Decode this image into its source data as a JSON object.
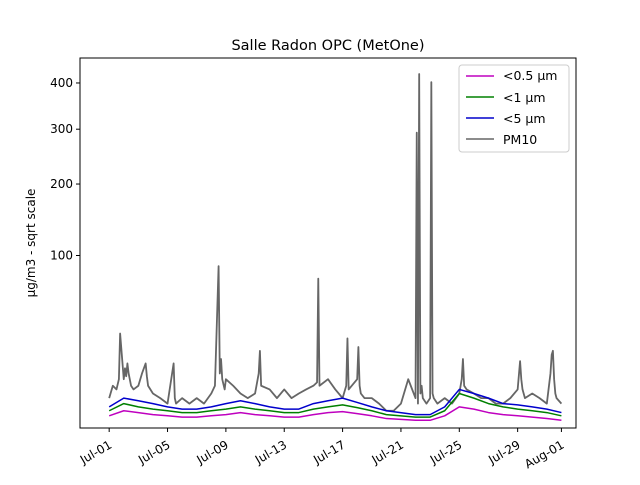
{
  "chart_data": {
    "type": "line",
    "title": "Salle Radon OPC (MetOne)",
    "xlabel": "",
    "ylabel": "µg/m3 - sqrt scale",
    "y_scale": "sqrt",
    "ylim": [
      0,
      460
    ],
    "xlim": [
      "2023-06-29",
      "2023-08-02"
    ],
    "y_ticks": [
      100,
      200,
      300,
      400
    ],
    "x_ticks": [
      "Jul-01",
      "Jul-05",
      "Jul-09",
      "Jul-13",
      "Jul-17",
      "Jul-21",
      "Jul-25",
      "Jul-29",
      "Aug-01"
    ],
    "x_tick_dates": [
      "2023-07-01",
      "2023-07-05",
      "2023-07-09",
      "2023-07-13",
      "2023-07-17",
      "2023-07-21",
      "2023-07-25",
      "2023-07-29",
      "2023-08-01"
    ],
    "grid": false,
    "legend_position": "top-right",
    "legend": [
      "<0.5 µm",
      "<1 µm",
      "<5 µm",
      "PM10"
    ],
    "series": [
      {
        "name": "<0.5 µm",
        "color": "#bf00bf",
        "x": [
          "2023-07-01",
          "2023-07-02",
          "2023-07-03",
          "2023-07-04",
          "2023-07-05",
          "2023-07-06",
          "2023-07-07",
          "2023-07-08",
          "2023-07-09",
          "2023-07-10",
          "2023-07-11",
          "2023-07-12",
          "2023-07-13",
          "2023-07-14",
          "2023-07-15",
          "2023-07-16",
          "2023-07-17",
          "2023-07-18",
          "2023-07-19",
          "2023-07-20",
          "2023-07-22",
          "2023-07-23",
          "2023-07-24",
          "2023-07-25",
          "2023-07-26",
          "2023-07-27",
          "2023-07-28",
          "2023-07-29",
          "2023-07-30",
          "2023-07-31",
          "2023-08-01"
        ],
        "y": [
          0.5,
          1.0,
          0.8,
          0.6,
          0.5,
          0.4,
          0.4,
          0.5,
          0.6,
          0.8,
          0.6,
          0.5,
          0.4,
          0.4,
          0.6,
          0.8,
          0.9,
          0.7,
          0.5,
          0.3,
          0.2,
          0.2,
          0.5,
          1.5,
          1.2,
          0.8,
          0.6,
          0.5,
          0.4,
          0.3,
          0.2
        ]
      },
      {
        "name": "<1 µm",
        "color": "#008000",
        "x": [
          "2023-07-01",
          "2023-07-02",
          "2023-07-03",
          "2023-07-04",
          "2023-07-05",
          "2023-07-06",
          "2023-07-07",
          "2023-07-08",
          "2023-07-09",
          "2023-07-10",
          "2023-07-11",
          "2023-07-12",
          "2023-07-13",
          "2023-07-14",
          "2023-07-15",
          "2023-07-16",
          "2023-07-17",
          "2023-07-18",
          "2023-07-19",
          "2023-07-20",
          "2023-07-22",
          "2023-07-23",
          "2023-07-24",
          "2023-07-25",
          "2023-07-26",
          "2023-07-27",
          "2023-07-28",
          "2023-07-29",
          "2023-07-30",
          "2023-07-31",
          "2023-08-01"
        ],
        "y": [
          1.0,
          2.0,
          1.5,
          1.2,
          1.0,
          0.8,
          0.8,
          1.0,
          1.2,
          1.5,
          1.2,
          1.0,
          0.8,
          0.8,
          1.2,
          1.5,
          1.8,
          1.4,
          1.0,
          0.6,
          0.4,
          0.4,
          1.0,
          4.0,
          3.0,
          2.0,
          1.5,
          1.2,
          1.0,
          0.8,
          0.5
        ]
      },
      {
        "name": "<5 µm",
        "color": "#0000cc",
        "x": [
          "2023-07-01",
          "2023-07-02",
          "2023-07-03",
          "2023-07-04",
          "2023-07-05",
          "2023-07-06",
          "2023-07-07",
          "2023-07-08",
          "2023-07-09",
          "2023-07-10",
          "2023-07-11",
          "2023-07-12",
          "2023-07-13",
          "2023-07-14",
          "2023-07-15",
          "2023-07-16",
          "2023-07-17",
          "2023-07-18",
          "2023-07-19",
          "2023-07-20",
          "2023-07-22",
          "2023-07-23",
          "2023-07-24",
          "2023-07-25",
          "2023-07-26",
          "2023-07-27",
          "2023-07-28",
          "2023-07-29",
          "2023-07-30",
          "2023-07-31",
          "2023-08-01"
        ],
        "y": [
          1.5,
          3.0,
          2.5,
          2.0,
          1.5,
          1.2,
          1.2,
          1.5,
          2.0,
          2.5,
          2.0,
          1.5,
          1.2,
          1.2,
          2.0,
          2.5,
          3.0,
          2.2,
          1.5,
          1.0,
          0.6,
          0.6,
          1.5,
          5.0,
          4.0,
          3.0,
          2.0,
          1.8,
          1.5,
          1.2,
          0.8
        ]
      },
      {
        "name": "PM10",
        "color": "#666666",
        "x": [
          "2023-07-01",
          "2023-07-01T06",
          "2023-07-01T12",
          "2023-07-01T16",
          "2023-07-01T18",
          "2023-07-02",
          "2023-07-02T02",
          "2023-07-02T04",
          "2023-07-02T06",
          "2023-07-02T08",
          "2023-07-02T12",
          "2023-07-02T16",
          "2023-07-03",
          "2023-07-03T06",
          "2023-07-03T12",
          "2023-07-03T14",
          "2023-07-03T16",
          "2023-07-04",
          "2023-07-04T12",
          "2023-07-05",
          "2023-07-05T10",
          "2023-07-05T12",
          "2023-07-05T14",
          "2023-07-06",
          "2023-07-06T12",
          "2023-07-07",
          "2023-07-07T12",
          "2023-07-08",
          "2023-07-08T06",
          "2023-07-08T12",
          "2023-07-08T14",
          "2023-07-08T16",
          "2023-07-08T18",
          "2023-07-08T22",
          "2023-07-09",
          "2023-07-09T12",
          "2023-07-10",
          "2023-07-10T12",
          "2023-07-11",
          "2023-07-11T06",
          "2023-07-11T08",
          "2023-07-11T10",
          "2023-07-12",
          "2023-07-12T12",
          "2023-07-13",
          "2023-07-13T12",
          "2023-07-14",
          "2023-07-14T12",
          "2023-07-15",
          "2023-07-15T06",
          "2023-07-15T08",
          "2023-07-15T10",
          "2023-07-16",
          "2023-07-16T12",
          "2023-07-17",
          "2023-07-17T06",
          "2023-07-17T08",
          "2023-07-17T10",
          "2023-07-18",
          "2023-07-18T02",
          "2023-07-18T04",
          "2023-07-18T06",
          "2023-07-18T12",
          "2023-07-19",
          "2023-07-19T12",
          "2023-07-20",
          "2023-07-20T12",
          "2023-07-21",
          "2023-07-21T12",
          "2023-07-22",
          "2023-07-22T02",
          "2023-07-22T04",
          "2023-07-22T06",
          "2023-07-22T08",
          "2023-07-22T10",
          "2023-07-22T12",
          "2023-07-22T18",
          "2023-07-23",
          "2023-07-23T02",
          "2023-07-23T04",
          "2023-07-23T06",
          "2023-07-23T12",
          "2023-07-24",
          "2023-07-24T12",
          "2023-07-25",
          "2023-07-25T04",
          "2023-07-25T06",
          "2023-07-25T08",
          "2023-07-25T12",
          "2023-07-26",
          "2023-07-26T12",
          "2023-07-27",
          "2023-07-27T12",
          "2023-07-28",
          "2023-07-28T12",
          "2023-07-29",
          "2023-07-29T04",
          "2023-07-29T06",
          "2023-07-29T08",
          "2023-07-29T12",
          "2023-07-30",
          "2023-07-30T12",
          "2023-07-31",
          "2023-07-31T06",
          "2023-07-31T08",
          "2023-07-31T10",
          "2023-07-31T12",
          "2023-07-31T14",
          "2023-07-31T16",
          "2023-08-01"
        ],
        "y": [
          3,
          6,
          5,
          8,
          30,
          8,
          12,
          9,
          14,
          10,
          6,
          5,
          6,
          10,
          14,
          9,
          6,
          4,
          3,
          2,
          14,
          3,
          2,
          3,
          2,
          3,
          2,
          4,
          6,
          88,
          10,
          16,
          8,
          5,
          8,
          6,
          4,
          3,
          4,
          10,
          20,
          6,
          5,
          3,
          5,
          3,
          4,
          5,
          6,
          7,
          75,
          6,
          8,
          5,
          3,
          6,
          27,
          5,
          8,
          22,
          6,
          4,
          3,
          3,
          2,
          1,
          1,
          2,
          8,
          3,
          293,
          2,
          421,
          4,
          6,
          3,
          2,
          3,
          402,
          4,
          3,
          2,
          3,
          2,
          4,
          8,
          16,
          6,
          5,
          4,
          3,
          3,
          2,
          2,
          3,
          5,
          15,
          8,
          5,
          3,
          4,
          3,
          2,
          10,
          18,
          20,
          8,
          4,
          3,
          2
        ]
      }
    ]
  }
}
